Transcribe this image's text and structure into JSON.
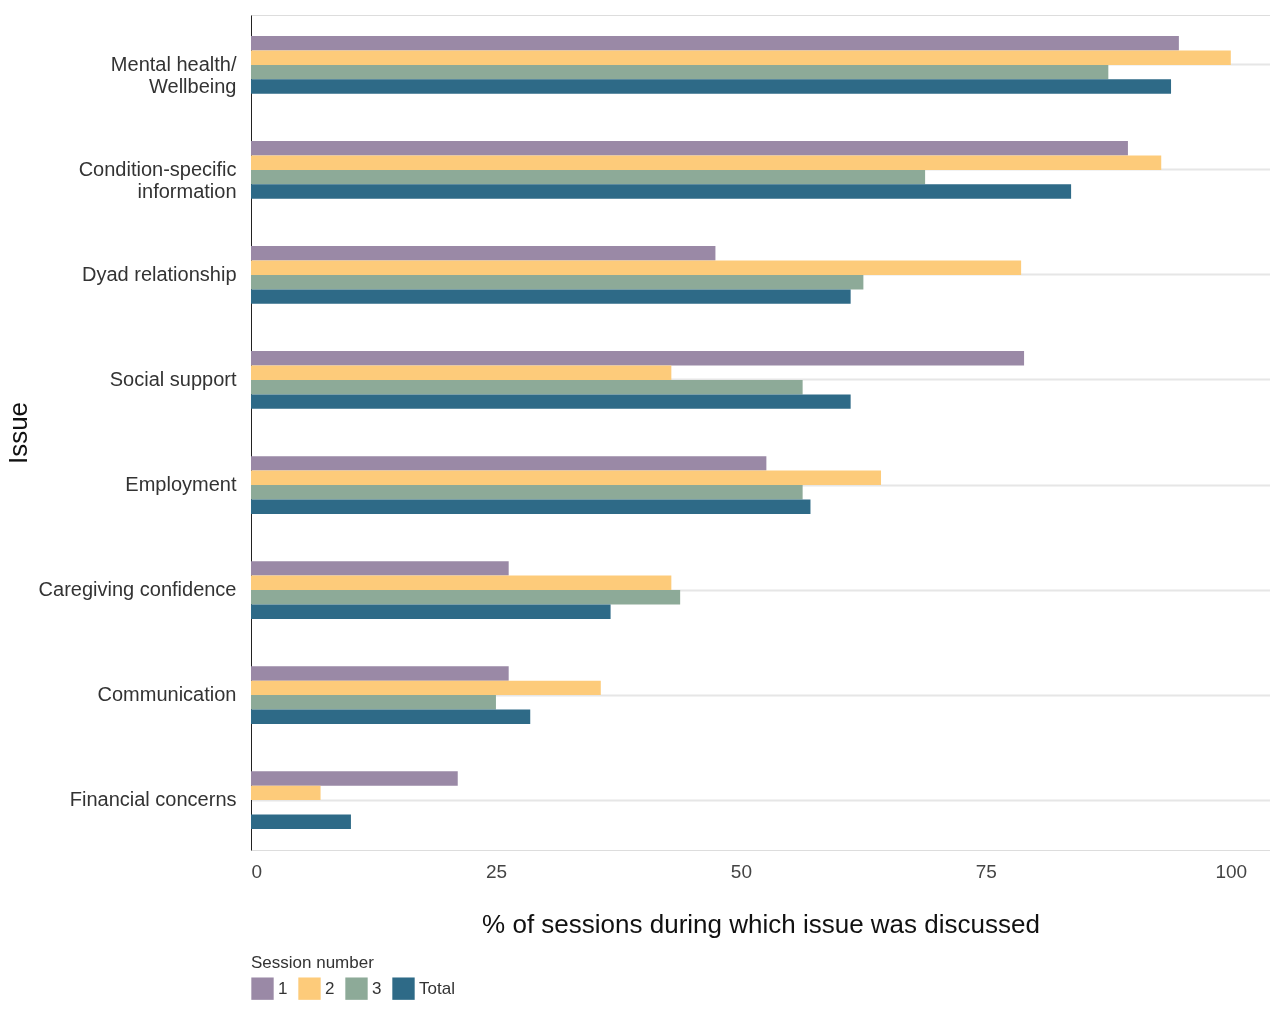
{
  "chart_data": {
    "type": "bar",
    "orientation": "horizontal",
    "xlabel": "% of sessions during which issue was discussed",
    "ylabel": "Issue",
    "legend_title": "Session number",
    "categories": [
      "Mental health/\nWellbeing",
      "Condition-specific\ninformation",
      "Dyad relationship",
      "Social support",
      "Employment",
      "Caregiving confidence",
      "Communication",
      "Financial concerns"
    ],
    "series": [
      {
        "name": "1",
        "color": "#9a89a6",
        "values": [
          94.7,
          89.5,
          47.4,
          78.9,
          52.6,
          26.3,
          26.3,
          21.1
        ]
      },
      {
        "name": "2",
        "color": "#fdcb7a",
        "values": [
          100,
          92.9,
          78.6,
          42.9,
          64.3,
          42.9,
          35.7,
          7.1
        ]
      },
      {
        "name": "3",
        "color": "#8daa98",
        "values": [
          87.5,
          68.8,
          62.5,
          56.3,
          56.3,
          43.8,
          25.0,
          null
        ]
      },
      {
        "name": "Total",
        "color": "#2e6a87",
        "values": [
          93.9,
          83.7,
          61.2,
          61.2,
          57.1,
          36.7,
          28.5,
          10.2
        ]
      }
    ],
    "xlim": [
      0,
      104
    ],
    "xticks": [
      0,
      25,
      50,
      75,
      100
    ],
    "grid": "y",
    "legend": "bottom"
  }
}
